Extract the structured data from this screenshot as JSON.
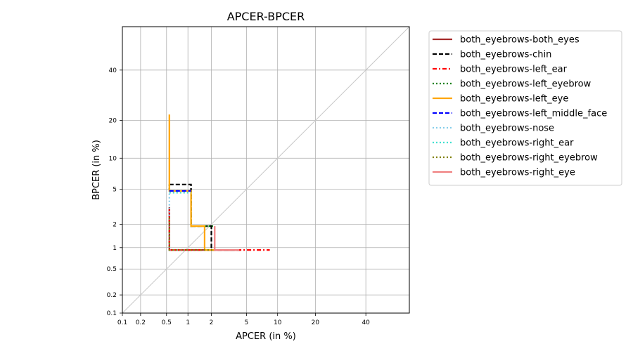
{
  "chart_data": {
    "type": "line",
    "title": "APCER-BPCER",
    "xlabel": "APCER (in %)",
    "ylabel": "BPCER (in %)",
    "x_scale": "probit",
    "y_scale": "probit",
    "xlim": [
      0.1,
      60
    ],
    "ylim": [
      0.1,
      60
    ],
    "x_ticks": [
      0.1,
      0.2,
      0.5,
      1,
      2,
      5,
      10,
      20,
      40
    ],
    "x_tick_labels": [
      "0.1",
      "0.2",
      "0.5",
      "1",
      "2",
      "5",
      "10",
      "20",
      "40"
    ],
    "y_ticks": [
      0.1,
      0.2,
      0.5,
      1,
      2,
      5,
      10,
      20,
      40
    ],
    "y_tick_labels": [
      "0.1",
      "0.2",
      "0.5",
      "1",
      "2",
      "5",
      "10",
      "20",
      "40"
    ],
    "grid": true,
    "diagonal_reference": true,
    "legend_position": "outside-right",
    "series": [
      {
        "name": "both_eyebrows-both_eyes",
        "color": "#a52a2a",
        "dash": "solid",
        "x": [
          0.55,
          0.55,
          4.2
        ],
        "y": [
          3.2,
          0.93,
          0.93
        ]
      },
      {
        "name": "both_eyebrows-chin",
        "color": "#000000",
        "dash": "dashed",
        "x": [
          0.55,
          0.55,
          1.1,
          1.1,
          2.0,
          2.0,
          4.3
        ],
        "y": [
          5.6,
          5.6,
          5.6,
          1.9,
          1.9,
          0.93,
          0.93
        ]
      },
      {
        "name": "both_eyebrows-left_ear",
        "color": "#ff0000",
        "dash": "dashdot",
        "x": [
          0.55,
          0.55,
          8.5
        ],
        "y": [
          3.0,
          0.93,
          0.93
        ]
      },
      {
        "name": "both_eyebrows-left_eyebrow",
        "color": "#008000",
        "dash": "dotted",
        "x": [
          0.55,
          0.55,
          1.1,
          1.1,
          2.1
        ],
        "y": [
          5.6,
          4.8,
          4.8,
          1.9,
          1.9
        ]
      },
      {
        "name": "both_eyebrows-left_eye",
        "color": "#ffa500",
        "dash": "solid",
        "x": [
          0.55,
          0.55,
          1.1,
          1.1,
          1.65,
          1.65,
          2.2
        ],
        "y": [
          22,
          4.8,
          4.8,
          1.9,
          1.9,
          0.93,
          0.93
        ]
      },
      {
        "name": "both_eyebrows-left_middle_face",
        "color": "#0000ff",
        "dash": "dashed",
        "x": [
          0.55,
          0.55,
          1.1
        ],
        "y": [
          4.8,
          4.8,
          4.8
        ]
      },
      {
        "name": "both_eyebrows-nose",
        "color": "#87ceeb",
        "dash": "dotted",
        "x": [
          0.55,
          0.55,
          1.0
        ],
        "y": [
          4.5,
          0.93,
          0.93
        ]
      },
      {
        "name": "both_eyebrows-right_ear",
        "color": "#40e0d0",
        "dash": "dotted",
        "x": [
          0.55,
          0.55,
          1.1
        ],
        "y": [
          4.6,
          4.6,
          4.6
        ]
      },
      {
        "name": "both_eyebrows-right_eyebrow",
        "color": "#808000",
        "dash": "dotted",
        "x": [
          0.55,
          0.55,
          2.1
        ],
        "y": [
          2.4,
          0.93,
          0.93
        ]
      },
      {
        "name": "both_eyebrows-right_eye",
        "color": "#f08080",
        "dash": "solid",
        "x": [
          2.2,
          2.2,
          4.2
        ],
        "y": [
          1.9,
          0.93,
          0.93
        ]
      }
    ]
  }
}
